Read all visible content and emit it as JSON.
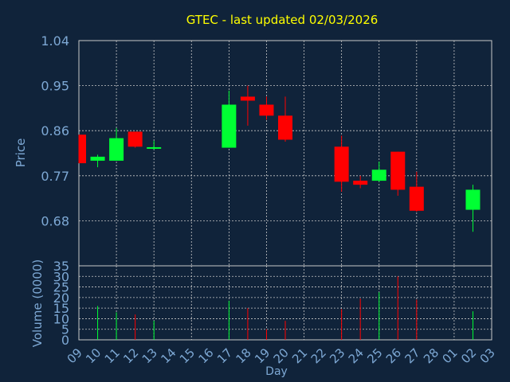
{
  "title": "GTEC - last updated 02/03/2026",
  "colors": {
    "background": "#10233a",
    "grid": "#c8c8c8",
    "axis_text": "#7da8d4",
    "title": "#ffff00",
    "up": "#00ff33",
    "down": "#ff0000"
  },
  "chart_data": [
    {
      "type": "candlestick",
      "ylabel": "Price",
      "ylim": [
        0.59,
        1.04
      ],
      "yticks": [
        "1.04",
        "0.95",
        "0.86",
        "0.77",
        "0.68"
      ],
      "ytick_values": [
        1.04,
        0.95,
        0.86,
        0.77,
        0.68
      ],
      "grid": true,
      "candles": [
        {
          "day": "09",
          "open": 0.852,
          "high": 0.852,
          "low": 0.795,
          "close": 0.795
        },
        {
          "day": "10",
          "open": 0.8,
          "high": 0.812,
          "low": 0.787,
          "close": 0.808
        },
        {
          "day": "11",
          "open": 0.8,
          "high": 0.865,
          "low": 0.8,
          "close": 0.845
        },
        {
          "day": "12",
          "open": 0.858,
          "high": 0.858,
          "low": 0.826,
          "close": 0.828
        },
        {
          "day": "13",
          "open": 0.824,
          "high": 0.84,
          "low": 0.822,
          "close": 0.827
        },
        {
          "day": "17",
          "open": 0.826,
          "high": 0.94,
          "low": 0.826,
          "close": 0.912
        },
        {
          "day": "18",
          "open": 0.928,
          "high": 0.95,
          "low": 0.87,
          "close": 0.92
        },
        {
          "day": "19",
          "open": 0.912,
          "high": 0.928,
          "low": 0.882,
          "close": 0.89
        },
        {
          "day": "20",
          "open": 0.89,
          "high": 0.928,
          "low": 0.838,
          "close": 0.842
        },
        {
          "day": "23",
          "open": 0.828,
          "high": 0.85,
          "low": 0.738,
          "close": 0.758
        },
        {
          "day": "24",
          "open": 0.76,
          "high": 0.77,
          "low": 0.745,
          "close": 0.752
        },
        {
          "day": "25",
          "open": 0.76,
          "high": 0.798,
          "low": 0.758,
          "close": 0.782
        },
        {
          "day": "26",
          "open": 0.818,
          "high": 0.818,
          "low": 0.73,
          "close": 0.742
        },
        {
          "day": "27",
          "open": 0.748,
          "high": 0.778,
          "low": 0.698,
          "close": 0.7
        },
        {
          "day": "02",
          "open": 0.702,
          "high": 0.752,
          "low": 0.658,
          "close": 0.742
        }
      ]
    },
    {
      "type": "bar",
      "ylabel": "Volume (0000)",
      "xlabel": "Day",
      "ylim": [
        0,
        35
      ],
      "yticks": [
        "35",
        "30",
        "25",
        "20",
        "15",
        "10",
        "5",
        "0"
      ],
      "ytick_values": [
        35,
        30,
        25,
        20,
        15,
        10,
        5,
        0
      ],
      "grid": true,
      "categories": [
        "09",
        "10",
        "11",
        "12",
        "13",
        "14",
        "15",
        "16",
        "17",
        "18",
        "19",
        "20",
        "21",
        "22",
        "23",
        "24",
        "25",
        "26",
        "27",
        "28",
        "01",
        "02",
        "03"
      ],
      "volumes": [
        {
          "day": "10",
          "value": 16,
          "direction": "up"
        },
        {
          "day": "11",
          "value": 13,
          "direction": "up"
        },
        {
          "day": "12",
          "value": 12,
          "direction": "down"
        },
        {
          "day": "13",
          "value": 9,
          "direction": "up"
        },
        {
          "day": "17",
          "value": 18.5,
          "direction": "up"
        },
        {
          "day": "18",
          "value": 15,
          "direction": "down"
        },
        {
          "day": "19",
          "value": 5,
          "direction": "down"
        },
        {
          "day": "20",
          "value": 9,
          "direction": "down"
        },
        {
          "day": "23",
          "value": 14.5,
          "direction": "down"
        },
        {
          "day": "24",
          "value": 19.5,
          "direction": "down"
        },
        {
          "day": "25",
          "value": 22.5,
          "direction": "up"
        },
        {
          "day": "26",
          "value": 30,
          "direction": "down"
        },
        {
          "day": "27",
          "value": 19,
          "direction": "down"
        },
        {
          "day": "02",
          "value": 13.5,
          "direction": "up"
        }
      ]
    }
  ]
}
